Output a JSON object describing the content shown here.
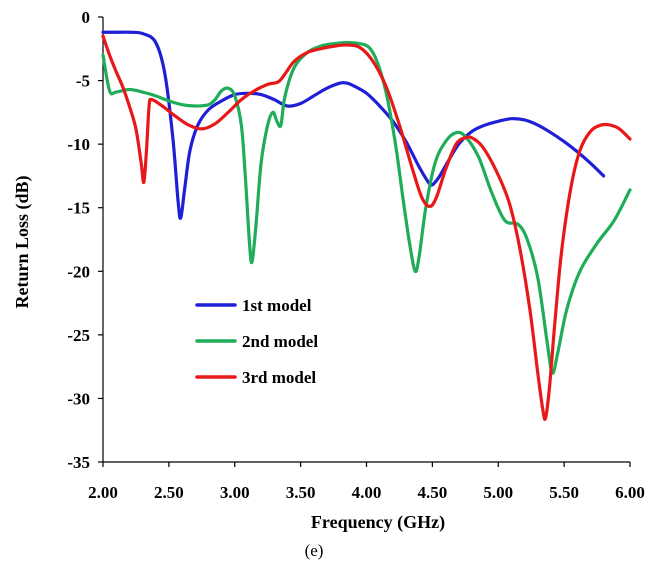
{
  "chart_data": {
    "type": "line",
    "title": "",
    "xlabel": "Frequency (GHz)",
    "ylabel": "Return Loss (dB)",
    "xlim": [
      2.0,
      6.0
    ],
    "ylim": [
      -35,
      0
    ],
    "x_ticks": [
      "2.00",
      "2.50",
      "3.00",
      "3.50",
      "4.00",
      "4.50",
      "5.00",
      "5.50",
      "6.00"
    ],
    "y_ticks": [
      "0",
      "-5",
      "-10",
      "-15",
      "-20",
      "-25",
      "-30",
      "-35"
    ],
    "grid": false,
    "legend_position": "lower-left",
    "caption": "(e)",
    "series": [
      {
        "name": "1st model",
        "color": "#1f1fd6",
        "points": [
          [
            2.0,
            -1.2
          ],
          [
            2.1,
            -1.2
          ],
          [
            2.2,
            -1.2
          ],
          [
            2.3,
            -1.3
          ],
          [
            2.4,
            -2.0
          ],
          [
            2.47,
            -4.5
          ],
          [
            2.53,
            -9.5
          ],
          [
            2.57,
            -14.5
          ],
          [
            2.59,
            -15.8
          ],
          [
            2.62,
            -13.5
          ],
          [
            2.66,
            -10.5
          ],
          [
            2.72,
            -8.5
          ],
          [
            2.8,
            -7.3
          ],
          [
            2.9,
            -6.6
          ],
          [
            3.0,
            -6.1
          ],
          [
            3.1,
            -6.0
          ],
          [
            3.2,
            -6.1
          ],
          [
            3.3,
            -6.5
          ],
          [
            3.4,
            -7.0
          ],
          [
            3.5,
            -6.8
          ],
          [
            3.6,
            -6.2
          ],
          [
            3.7,
            -5.6
          ],
          [
            3.8,
            -5.2
          ],
          [
            3.85,
            -5.2
          ],
          [
            3.9,
            -5.4
          ],
          [
            4.0,
            -6.0
          ],
          [
            4.1,
            -7.0
          ],
          [
            4.2,
            -8.2
          ],
          [
            4.3,
            -9.8
          ],
          [
            4.4,
            -11.8
          ],
          [
            4.47,
            -13.0
          ],
          [
            4.5,
            -13.2
          ],
          [
            4.55,
            -12.6
          ],
          [
            4.6,
            -11.7
          ],
          [
            4.7,
            -10.0
          ],
          [
            4.8,
            -9.0
          ],
          [
            4.9,
            -8.5
          ],
          [
            5.0,
            -8.2
          ],
          [
            5.1,
            -8.0
          ],
          [
            5.2,
            -8.1
          ],
          [
            5.3,
            -8.5
          ],
          [
            5.4,
            -9.1
          ],
          [
            5.5,
            -9.8
          ],
          [
            5.6,
            -10.6
          ],
          [
            5.7,
            -11.5
          ],
          [
            5.8,
            -12.5
          ]
        ]
      },
      {
        "name": "2nd model",
        "color": "#1fad5a",
        "points": [
          [
            2.0,
            -3.0
          ],
          [
            2.05,
            -5.8
          ],
          [
            2.1,
            -5.9
          ],
          [
            2.2,
            -5.7
          ],
          [
            2.3,
            -5.9
          ],
          [
            2.4,
            -6.2
          ],
          [
            2.5,
            -6.6
          ],
          [
            2.6,
            -6.9
          ],
          [
            2.7,
            -7.0
          ],
          [
            2.8,
            -6.9
          ],
          [
            2.85,
            -6.5
          ],
          [
            2.9,
            -5.8
          ],
          [
            2.95,
            -5.6
          ],
          [
            3.0,
            -6.2
          ],
          [
            3.05,
            -8.5
          ],
          [
            3.08,
            -12.5
          ],
          [
            3.11,
            -17.5
          ],
          [
            3.13,
            -19.3
          ],
          [
            3.16,
            -16.5
          ],
          [
            3.2,
            -11.5
          ],
          [
            3.25,
            -8.5
          ],
          [
            3.29,
            -7.5
          ],
          [
            3.32,
            -8.2
          ],
          [
            3.35,
            -8.5
          ],
          [
            3.38,
            -6.3
          ],
          [
            3.45,
            -4.0
          ],
          [
            3.55,
            -2.8
          ],
          [
            3.65,
            -2.3
          ],
          [
            3.75,
            -2.1
          ],
          [
            3.85,
            -2.0
          ],
          [
            3.95,
            -2.1
          ],
          [
            4.02,
            -2.4
          ],
          [
            4.08,
            -3.5
          ],
          [
            4.15,
            -6.0
          ],
          [
            4.22,
            -10.0
          ],
          [
            4.28,
            -14.5
          ],
          [
            4.33,
            -18.0
          ],
          [
            4.37,
            -20.0
          ],
          [
            4.4,
            -18.8
          ],
          [
            4.45,
            -15.0
          ],
          [
            4.52,
            -11.5
          ],
          [
            4.6,
            -9.8
          ],
          [
            4.68,
            -9.1
          ],
          [
            4.75,
            -9.4
          ],
          [
            4.85,
            -11.0
          ],
          [
            4.95,
            -13.8
          ],
          [
            5.05,
            -16.0
          ],
          [
            5.15,
            -16.3
          ],
          [
            5.22,
            -17.5
          ],
          [
            5.3,
            -20.5
          ],
          [
            5.37,
            -25.5
          ],
          [
            5.41,
            -28.0
          ],
          [
            5.45,
            -26.5
          ],
          [
            5.52,
            -23.0
          ],
          [
            5.62,
            -20.0
          ],
          [
            5.75,
            -17.8
          ],
          [
            5.88,
            -16.0
          ],
          [
            6.0,
            -13.6
          ]
        ]
      },
      {
        "name": "3rd model",
        "color": "#e81818",
        "points": [
          [
            2.0,
            -1.5
          ],
          [
            2.05,
            -3.0
          ],
          [
            2.1,
            -4.3
          ],
          [
            2.15,
            -5.5
          ],
          [
            2.2,
            -7.0
          ],
          [
            2.25,
            -8.8
          ],
          [
            2.29,
            -11.5
          ],
          [
            2.31,
            -13.0
          ],
          [
            2.33,
            -10.5
          ],
          [
            2.35,
            -7.0
          ],
          [
            2.37,
            -6.5
          ],
          [
            2.45,
            -7.0
          ],
          [
            2.55,
            -7.8
          ],
          [
            2.65,
            -8.5
          ],
          [
            2.75,
            -8.8
          ],
          [
            2.85,
            -8.4
          ],
          [
            2.95,
            -7.5
          ],
          [
            3.05,
            -6.5
          ],
          [
            3.15,
            -5.8
          ],
          [
            3.25,
            -5.3
          ],
          [
            3.33,
            -5.1
          ],
          [
            3.38,
            -4.5
          ],
          [
            3.45,
            -3.5
          ],
          [
            3.55,
            -2.8
          ],
          [
            3.65,
            -2.5
          ],
          [
            3.75,
            -2.3
          ],
          [
            3.85,
            -2.2
          ],
          [
            3.95,
            -2.4
          ],
          [
            4.05,
            -3.5
          ],
          [
            4.15,
            -5.5
          ],
          [
            4.25,
            -8.5
          ],
          [
            4.35,
            -12.0
          ],
          [
            4.42,
            -14.2
          ],
          [
            4.48,
            -14.9
          ],
          [
            4.53,
            -14.2
          ],
          [
            4.6,
            -12.0
          ],
          [
            4.68,
            -10.0
          ],
          [
            4.75,
            -9.5
          ],
          [
            4.8,
            -9.5
          ],
          [
            4.88,
            -10.2
          ],
          [
            4.98,
            -12.0
          ],
          [
            5.08,
            -14.5
          ],
          [
            5.16,
            -18.0
          ],
          [
            5.24,
            -23.0
          ],
          [
            5.3,
            -28.0
          ],
          [
            5.34,
            -31.0
          ],
          [
            5.36,
            -31.5
          ],
          [
            5.39,
            -29.0
          ],
          [
            5.43,
            -24.0
          ],
          [
            5.48,
            -18.5
          ],
          [
            5.55,
            -13.5
          ],
          [
            5.62,
            -10.5
          ],
          [
            5.7,
            -9.0
          ],
          [
            5.78,
            -8.5
          ],
          [
            5.85,
            -8.5
          ],
          [
            5.92,
            -8.8
          ],
          [
            6.0,
            -9.6
          ]
        ]
      }
    ]
  }
}
